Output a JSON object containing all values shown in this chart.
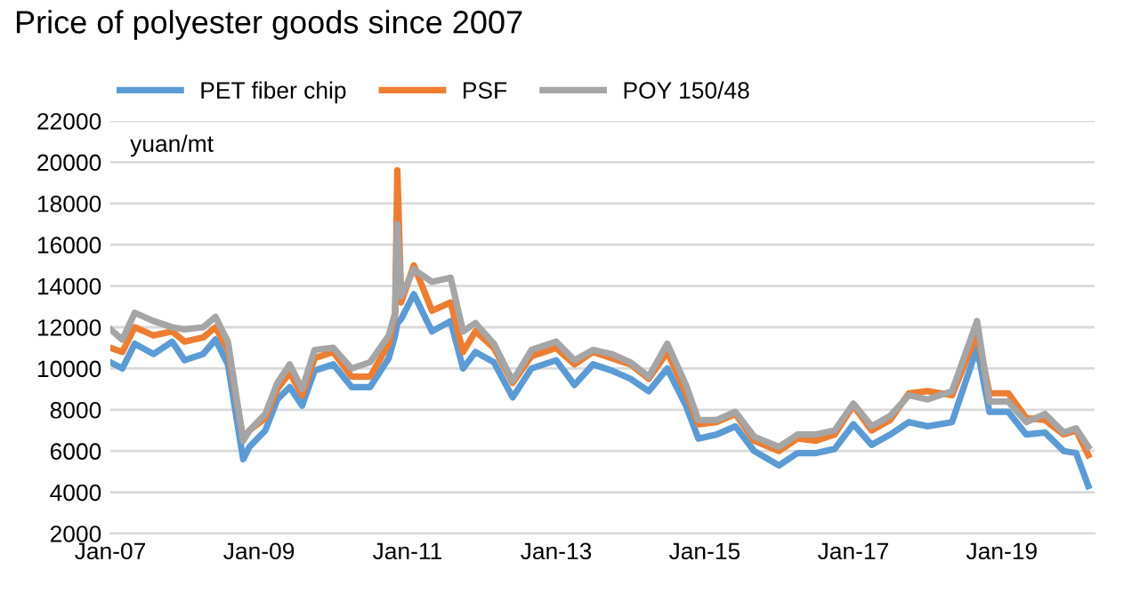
{
  "chart_data": {
    "type": "line",
    "title": "Price of polyester goods since 2007",
    "ylabel": "yuan/mt",
    "x": [
      "2007-01",
      "2007-03",
      "2007-05",
      "2007-08",
      "2007-11",
      "2008-01",
      "2008-04",
      "2008-06",
      "2008-08",
      "2008-10-15",
      "2008-11-15",
      "2009-02",
      "2009-04",
      "2009-06",
      "2009-08",
      "2009-10",
      "2010-01",
      "2010-04",
      "2010-07",
      "2010-10-01",
      "2010-11-01",
      "2010-11-12",
      "2010-12-01",
      "2011-02",
      "2011-05",
      "2011-08",
      "2011-10",
      "2011-12",
      "2012-03",
      "2012-06",
      "2012-09",
      "2013-01",
      "2013-04",
      "2013-07",
      "2013-10",
      "2014-01",
      "2014-04",
      "2014-07",
      "2014-10",
      "2014-12",
      "2015-03",
      "2015-06",
      "2015-09",
      "2016-01",
      "2016-04",
      "2016-07",
      "2016-10",
      "2017-01",
      "2017-04",
      "2017-07",
      "2017-10",
      "2018-01",
      "2018-05",
      "2018-09",
      "2018-11",
      "2019-02",
      "2019-05",
      "2019-08",
      "2019-11",
      "2020-01",
      "2020-03"
    ],
    "series": [
      {
        "name": "PET fiber chip",
        "color": "#5b9bd5",
        "values": [
          10300,
          10000,
          11200,
          10700,
          11300,
          10400,
          10700,
          11400,
          10200,
          5600,
          6200,
          7000,
          8500,
          9100,
          8200,
          9900,
          10200,
          9100,
          9100,
          10500,
          11600,
          12200,
          12400,
          13600,
          11800,
          12300,
          10000,
          10800,
          10300,
          8600,
          10000,
          10400,
          9200,
          10200,
          9900,
          9500,
          8900,
          10000,
          8200,
          6600,
          6800,
          7200,
          6000,
          5300,
          5900,
          5900,
          6100,
          7300,
          6300,
          6800,
          7400,
          7200,
          7400,
          11000,
          7900,
          7900,
          6800,
          6900,
          6000,
          5900,
          4300
        ]
      },
      {
        "name": "PSF",
        "color": "#ed7d31",
        "values": [
          11000,
          10800,
          12000,
          11600,
          11800,
          11300,
          11500,
          12000,
          10900,
          6600,
          7000,
          7600,
          9000,
          9800,
          8700,
          10500,
          10800,
          9600,
          9600,
          11200,
          12600,
          19600,
          13200,
          15000,
          12800,
          13200,
          10800,
          11800,
          11000,
          9300,
          10600,
          11000,
          10200,
          10800,
          10500,
          10200,
          9500,
          10800,
          8800,
          7300,
          7400,
          7800,
          6500,
          6000,
          6600,
          6500,
          6800,
          8200,
          7000,
          7500,
          8800,
          8900,
          8700,
          11700,
          8800,
          8800,
          7600,
          7500,
          6800,
          7000,
          5800
        ]
      },
      {
        "name": "POY 150/48",
        "color": "#a5a5a5",
        "values": [
          11900,
          11400,
          12700,
          12300,
          12000,
          11900,
          12000,
          12500,
          11300,
          6500,
          7000,
          7800,
          9300,
          10200,
          9000,
          10900,
          11000,
          10000,
          10300,
          11600,
          12700,
          17000,
          13500,
          14800,
          14200,
          14400,
          11800,
          12200,
          11200,
          9400,
          10900,
          11300,
          10400,
          10900,
          10700,
          10300,
          9600,
          11200,
          9200,
          7500,
          7500,
          7900,
          6700,
          6200,
          6800,
          6800,
          7000,
          8300,
          7200,
          7700,
          8700,
          8500,
          8900,
          12300,
          8400,
          8400,
          7400,
          7800,
          6900,
          7100,
          6200
        ]
      }
    ],
    "xlim": [
      "2007-01-01",
      "2020-04-01"
    ],
    "xticks": [
      {
        "value": "2007-01-01",
        "label": "Jan-07"
      },
      {
        "value": "2009-01-01",
        "label": "Jan-09"
      },
      {
        "value": "2011-01-01",
        "label": "Jan-11"
      },
      {
        "value": "2013-01-01",
        "label": "Jan-13"
      },
      {
        "value": "2015-01-01",
        "label": "Jan-15"
      },
      {
        "value": "2017-01-01",
        "label": "Jan-17"
      },
      {
        "value": "2019-01-01",
        "label": "Jan-19"
      }
    ],
    "ylim": [
      2000,
      22000
    ],
    "yticks": [
      2000,
      4000,
      6000,
      8000,
      10000,
      12000,
      14000,
      16000,
      18000,
      20000,
      22000
    ],
    "grid": "y",
    "legend": "top",
    "marker": "none",
    "line_style": "solid"
  }
}
